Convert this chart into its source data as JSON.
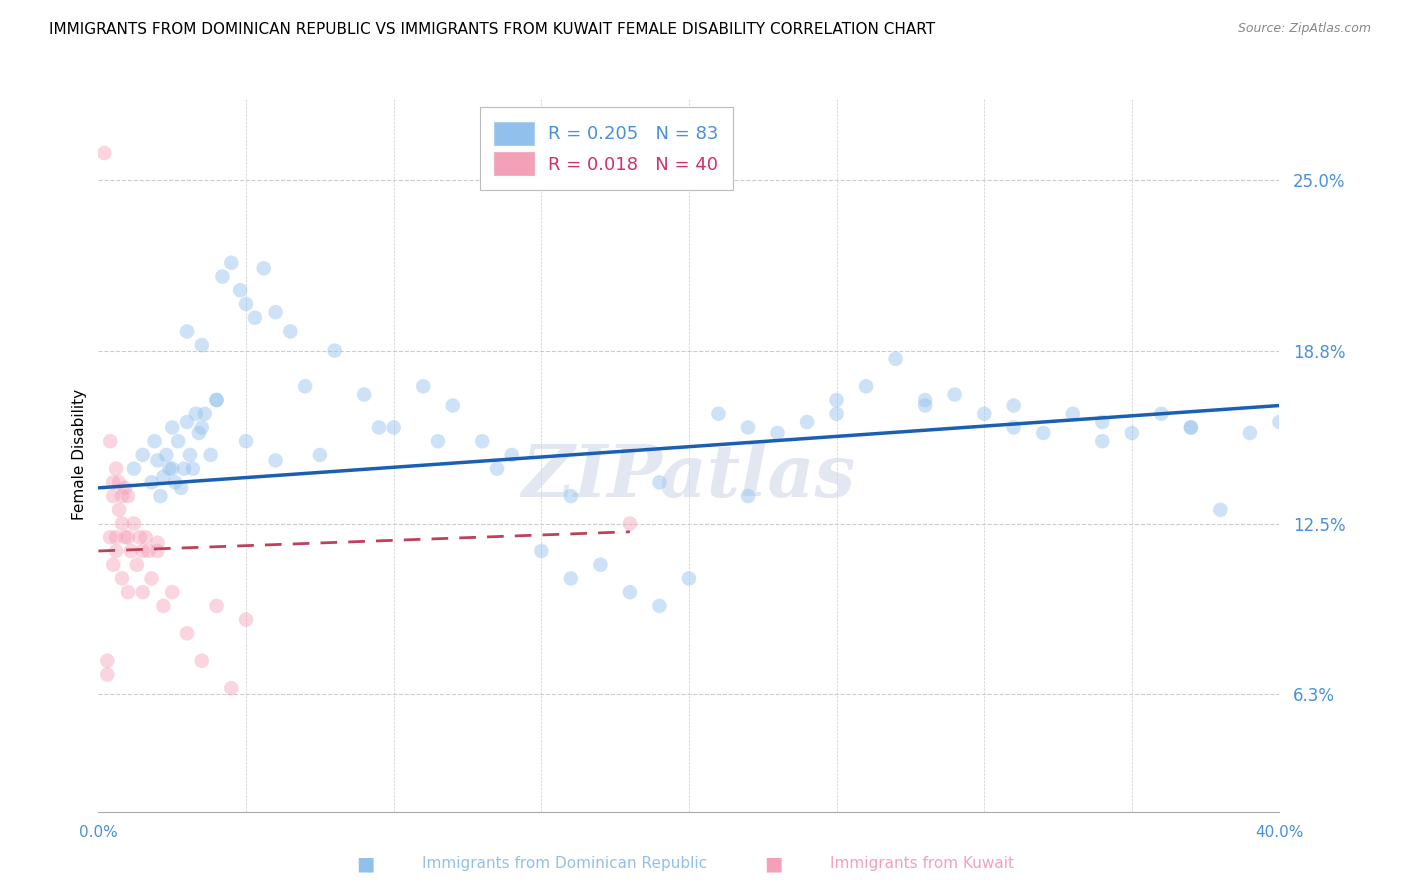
{
  "title": "IMMIGRANTS FROM DOMINICAN REPUBLIC VS IMMIGRANTS FROM KUWAIT FEMALE DISABILITY CORRELATION CHART",
  "source": "Source: ZipAtlas.com",
  "ylabel": "Female Disability",
  "yticks": [
    6.3,
    12.5,
    18.8,
    25.0
  ],
  "ytick_labels": [
    "6.3%",
    "12.5%",
    "18.8%",
    "25.0%"
  ],
  "xmin": 0.0,
  "xmax": 40.0,
  "ymin": 2.0,
  "ymax": 28.0,
  "blue_scatter_x": [
    1.2,
    1.5,
    1.8,
    1.9,
    2.0,
    2.1,
    2.2,
    2.3,
    2.4,
    2.5,
    2.6,
    2.7,
    2.8,
    2.9,
    3.0,
    3.1,
    3.2,
    3.3,
    3.4,
    3.5,
    3.6,
    3.8,
    4.0,
    4.2,
    4.5,
    4.8,
    5.0,
    5.3,
    5.6,
    6.0,
    6.5,
    7.0,
    8.0,
    9.0,
    10.0,
    11.0,
    12.0,
    13.0,
    14.0,
    15.0,
    16.0,
    17.0,
    18.0,
    19.0,
    20.0,
    21.0,
    22.0,
    23.0,
    24.0,
    25.0,
    26.0,
    27.0,
    28.0,
    29.0,
    30.0,
    31.0,
    32.0,
    33.0,
    34.0,
    35.0,
    36.0,
    37.0,
    38.0,
    39.0,
    40.0,
    2.5,
    3.0,
    3.5,
    4.0,
    5.0,
    6.0,
    7.5,
    9.5,
    11.5,
    13.5,
    16.0,
    19.0,
    22.0,
    25.0,
    28.0,
    31.0,
    34.0,
    37.0
  ],
  "blue_scatter_y": [
    14.5,
    15.0,
    14.0,
    15.5,
    14.8,
    13.5,
    14.2,
    15.0,
    14.5,
    16.0,
    14.0,
    15.5,
    13.8,
    14.5,
    16.2,
    15.0,
    14.5,
    16.5,
    15.8,
    16.0,
    16.5,
    15.0,
    17.0,
    21.5,
    22.0,
    21.0,
    20.5,
    20.0,
    21.8,
    20.2,
    19.5,
    17.5,
    18.8,
    17.2,
    16.0,
    17.5,
    16.8,
    15.5,
    15.0,
    11.5,
    10.5,
    11.0,
    10.0,
    9.5,
    10.5,
    16.5,
    16.0,
    15.8,
    16.2,
    17.0,
    17.5,
    18.5,
    16.8,
    17.2,
    16.5,
    16.0,
    15.8,
    16.5,
    16.2,
    15.8,
    16.5,
    16.0,
    13.0,
    15.8,
    16.2,
    14.5,
    19.5,
    19.0,
    17.0,
    15.5,
    14.8,
    15.0,
    16.0,
    15.5,
    14.5,
    13.5,
    14.0,
    13.5,
    16.5,
    17.0,
    16.8,
    15.5,
    16.0
  ],
  "pink_scatter_x": [
    0.2,
    0.3,
    0.3,
    0.4,
    0.5,
    0.5,
    0.6,
    0.6,
    0.7,
    0.7,
    0.8,
    0.8,
    0.9,
    0.9,
    1.0,
    1.0,
    1.1,
    1.2,
    1.3,
    1.4,
    1.5,
    1.6,
    1.7,
    1.8,
    2.0,
    2.2,
    2.5,
    3.0,
    3.5,
    4.0,
    4.5,
    5.0,
    0.4,
    0.5,
    0.6,
    0.8,
    1.0,
    1.5,
    2.0,
    18.0
  ],
  "pink_scatter_y": [
    26.0,
    7.0,
    7.5,
    15.5,
    14.0,
    13.5,
    14.5,
    12.0,
    14.0,
    13.0,
    13.5,
    12.5,
    13.8,
    12.0,
    13.5,
    12.0,
    11.5,
    12.5,
    11.0,
    12.0,
    11.5,
    12.0,
    11.5,
    10.5,
    11.8,
    9.5,
    10.0,
    8.5,
    7.5,
    9.5,
    6.5,
    9.0,
    12.0,
    11.0,
    11.5,
    10.5,
    10.0,
    10.0,
    11.5,
    12.5
  ],
  "blue_line_x": [
    0.0,
    40.0
  ],
  "blue_line_y": [
    13.8,
    16.8
  ],
  "pink_line_x": [
    0.0,
    18.0
  ],
  "pink_line_y": [
    11.5,
    12.2
  ],
  "scatter_size": 110,
  "scatter_alpha": 0.45,
  "blue_color": "#92c0ed",
  "pink_color": "#f4a0b8",
  "blue_line_color": "#1a5fb4",
  "pink_line_color": "#c0405a",
  "background_color": "#ffffff",
  "grid_color": "#cccccc",
  "title_fontsize": 11,
  "tick_color": "#4a90d9",
  "legend_r_color_blue": "#4a90d9",
  "legend_r_color_pink": "#d03070",
  "watermark_text": "ZIPatlas",
  "watermark_color": "#d0d8e8",
  "watermark_alpha": 0.6
}
